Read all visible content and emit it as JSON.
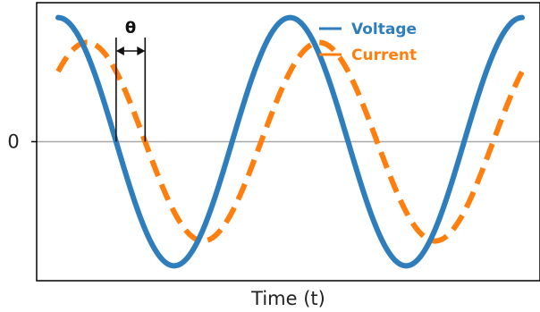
{
  "chart_data": {
    "type": "line",
    "title": "",
    "xlabel": "Time (t)",
    "ylabel": "",
    "yticks": [
      {
        "value": 0,
        "label": "0"
      }
    ],
    "ylim": [
      -1.12,
      1.12
    ],
    "xlim": [
      0,
      1
    ],
    "grid": false,
    "legend_position": "top-right",
    "series": [
      {
        "name": "Voltage",
        "color": "#2e7ebd",
        "style": "solid",
        "amplitude": 1.0,
        "cycles": 2.0,
        "phase_cycles": 0.0
      },
      {
        "name": "Current",
        "color": "#ff7f0e",
        "style": "dashed",
        "amplitude": 0.8,
        "cycles": 2.0,
        "phase_cycles": 0.125
      }
    ],
    "annotations": [
      {
        "label": "θ",
        "meaning": "phase difference between Voltage and Current"
      }
    ]
  }
}
